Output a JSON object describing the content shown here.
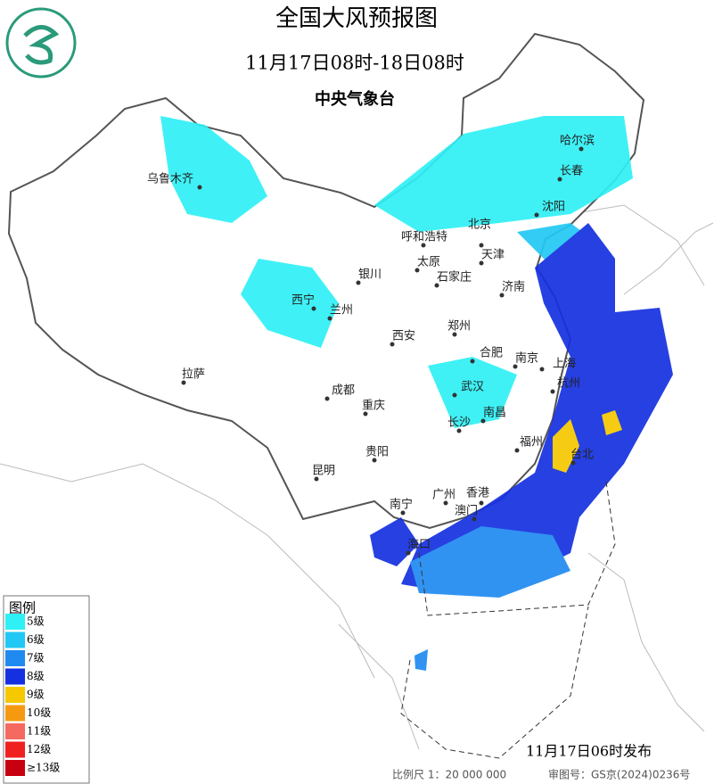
{
  "header": {
    "title": "全国大风预报图",
    "period": "11月17日08时-18日08时",
    "agency": "中央气象台"
  },
  "cities": [
    "乌鲁木齐",
    "哈尔滨",
    "长春",
    "沈阳",
    "北京",
    "呼和浩特",
    "天津",
    "太原",
    "石家庄",
    "银川",
    "济南",
    "西宁",
    "兰州",
    "郑州",
    "西安",
    "合肥",
    "南京",
    "上海",
    "拉萨",
    "武汉",
    "杭州",
    "成都",
    "重庆",
    "南昌",
    "长沙",
    "福州",
    "台北",
    "贵阳",
    "昆明",
    "南宁",
    "广州",
    "香港",
    "澳门",
    "海口"
  ],
  "legend": {
    "title": "图例",
    "items": [
      {
        "label": "5级",
        "color": "#2ff0f5"
      },
      {
        "label": "6级",
        "color": "#22c8f5"
      },
      {
        "label": "7级",
        "color": "#1f8af0"
      },
      {
        "label": "8级",
        "color": "#1530e0"
      },
      {
        "label": "9级",
        "color": "#f5c800"
      },
      {
        "label": "10级",
        "color": "#f59a10"
      },
      {
        "label": "11级",
        "color": "#f56a60"
      },
      {
        "label": "12级",
        "color": "#f02020"
      },
      {
        "label": "≥13级",
        "color": "#c80010"
      }
    ]
  },
  "footer": {
    "issued": "11月17日06时发布",
    "scale": "比例尺 1：20 000 000",
    "approval": "审图号：GS京(2024)0236号"
  }
}
